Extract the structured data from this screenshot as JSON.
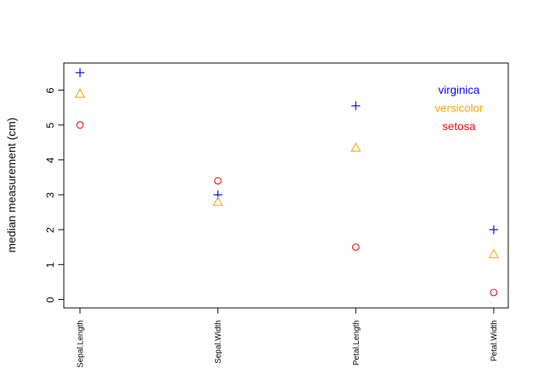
{
  "chart_data": {
    "type": "scatter",
    "title": "",
    "xlabel": "",
    "ylabel": "median measurement (cm)",
    "categories": [
      "Sepal.Length",
      "Sepal.Width",
      "Petal.Length",
      "Petal.Width"
    ],
    "yticks": [
      "0",
      "1",
      "2",
      "3",
      "4",
      "5",
      "6"
    ],
    "ylim": [
      -0.25,
      6.75
    ],
    "grid": false,
    "legend_position": "top-right",
    "series": [
      {
        "name": "virginica",
        "marker": "plus",
        "color": "#0000FF",
        "values": [
          6.5,
          3.0,
          5.55,
          2.0
        ]
      },
      {
        "name": "versicolor",
        "marker": "triangle",
        "color": "#FFA500",
        "values": [
          5.9,
          2.8,
          4.35,
          1.3
        ]
      },
      {
        "name": "setosa",
        "marker": "circle",
        "color": "#FF0000",
        "values": [
          5.0,
          3.4,
          1.5,
          0.2
        ]
      }
    ]
  }
}
